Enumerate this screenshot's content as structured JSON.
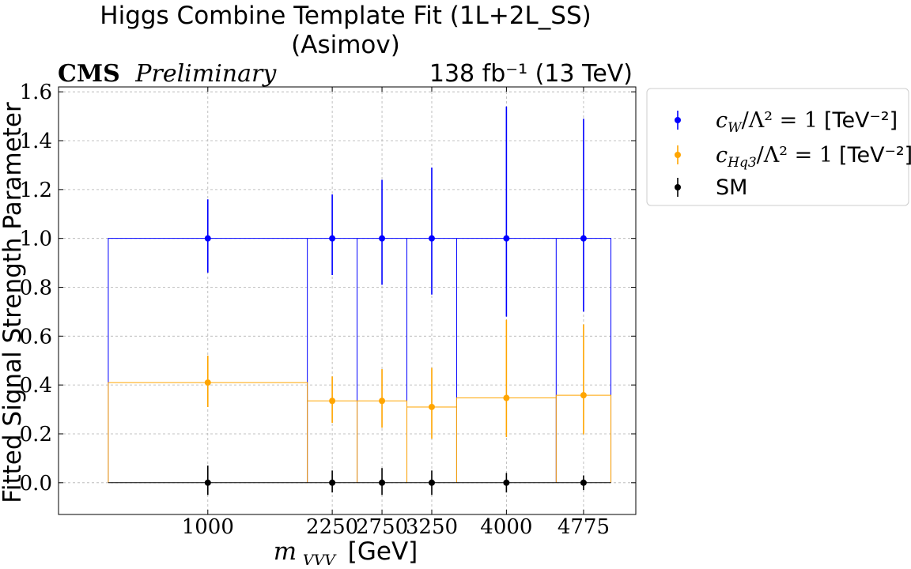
{
  "chart_data": {
    "type": "scatter",
    "title": [
      "Higgs Combine Template Fit (1L+2L_SS)",
      "(Asimov)"
    ],
    "header_left_bold": "CMS",
    "header_left_italic": "Preliminary",
    "header_right": "138 fb⁻¹ (13 TeV)",
    "xlabel": "m_VVV [GeV]",
    "xlabel_main": "m",
    "xlabel_sub": "VVV",
    "xlabel_unit": "[GeV]",
    "ylabel": "Fitted Signal Strength Parameter",
    "ylim": [
      -0.13,
      1.62
    ],
    "yticks": [
      "0.0",
      "0.2",
      "0.4",
      "0.6",
      "0.8",
      "1.0",
      "1.2",
      "1.4",
      "1.6"
    ],
    "ytick_values": [
      0.0,
      0.2,
      0.4,
      0.6,
      0.8,
      1.0,
      1.2,
      1.4,
      1.6
    ],
    "x_tick_labels": [
      "1000",
      "2250",
      "2750",
      "3250",
      "4000",
      "4775"
    ],
    "grid": true,
    "legend_position": "outside upper right",
    "bins": [
      {
        "label": "1000",
        "lo": 0,
        "hi": 2000
      },
      {
        "label": "2250",
        "lo": 2000,
        "hi": 2500
      },
      {
        "label": "2750",
        "lo": 2500,
        "hi": 3000
      },
      {
        "label": "3250",
        "lo": 3000,
        "hi": 3500
      },
      {
        "label": "4000",
        "lo": 3500,
        "hi": 4500
      },
      {
        "label": "4775",
        "lo": 4500,
        "hi": 5050
      }
    ],
    "series": [
      {
        "name": "c_W/Λ² = 1 [TeV⁻²]",
        "legend_coeff": "c",
        "legend_coeff_sub": "W",
        "legend_rest": "/Λ² = 1",
        "legend_unit": "[TeV⁻²]",
        "color": "#0000ff",
        "step": [
          1.0,
          1.0,
          1.0,
          1.0,
          1.0,
          1.0
        ],
        "values": [
          1.0,
          1.0,
          1.0,
          1.0,
          1.0,
          1.0
        ],
        "err_low": [
          0.14,
          0.15,
          0.19,
          0.23,
          0.32,
          0.3
        ],
        "err_high": [
          0.16,
          0.18,
          0.24,
          0.29,
          0.54,
          0.49
        ]
      },
      {
        "name": "c_Hq3/Λ² = 1 [TeV⁻²]",
        "legend_coeff": "c",
        "legend_coeff_sub": "Hq3",
        "legend_rest": "/Λ² = 1",
        "legend_unit": "[TeV⁻²]",
        "color": "#ffa500",
        "step": [
          0.41,
          0.335,
          0.335,
          0.31,
          0.347,
          0.358
        ],
        "values": [
          0.41,
          0.335,
          0.335,
          0.31,
          0.347,
          0.358
        ],
        "err_low": [
          0.1,
          0.09,
          0.11,
          0.13,
          0.16,
          0.16
        ],
        "err_high": [
          0.11,
          0.1,
          0.13,
          0.16,
          0.32,
          0.29
        ]
      },
      {
        "name": "SM",
        "legend_coeff": "",
        "legend_coeff_sub": "",
        "legend_rest": "",
        "legend_unit": "SM",
        "color": "#000000",
        "step": null,
        "values": [
          0.0,
          0.0,
          0.0,
          0.0,
          0.0,
          0.0
        ],
        "err_low": [
          0.05,
          0.04,
          0.05,
          0.05,
          0.04,
          0.03
        ],
        "err_high": [
          0.07,
          0.05,
          0.06,
          0.05,
          0.04,
          0.03
        ]
      }
    ]
  }
}
